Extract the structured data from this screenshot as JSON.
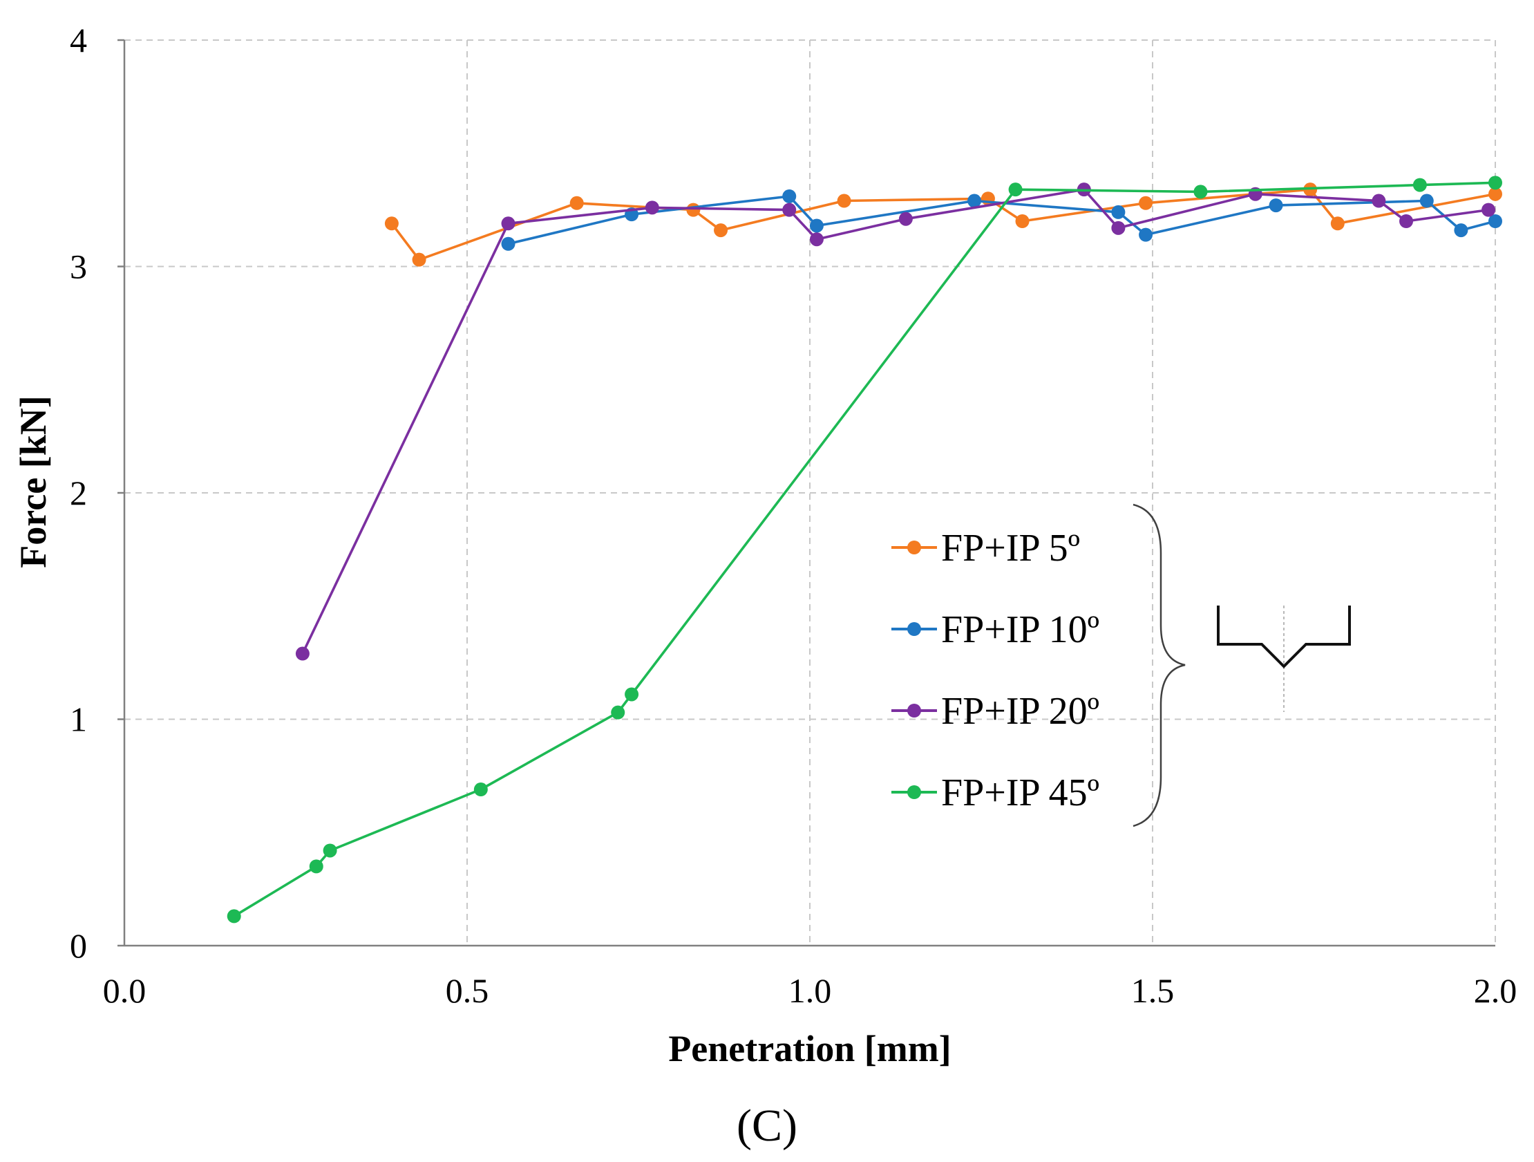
{
  "chart_data": {
    "type": "line",
    "title": "",
    "xlabel": "Penetration [mm]",
    "ylabel": "Force [kN]",
    "panel_label": "(C)",
    "xlim": [
      0.0,
      2.0
    ],
    "ylim": [
      0,
      4
    ],
    "xticks": [
      "0.0",
      "0.5",
      "1.0",
      "1.5",
      "2.0"
    ],
    "yticks": [
      "0",
      "1",
      "2",
      "3",
      "4"
    ],
    "grid": true,
    "legend_position": "center-right",
    "series": [
      {
        "name": "FP+IP 5º",
        "color": "#f47b20",
        "x": [
          0.39,
          0.43,
          0.66,
          0.83,
          0.87,
          1.05,
          1.26,
          1.31,
          1.49,
          1.73,
          1.77,
          2.0
        ],
        "y": [
          3.19,
          3.03,
          3.28,
          3.25,
          3.16,
          3.29,
          3.3,
          3.2,
          3.28,
          3.34,
          3.19,
          3.32
        ]
      },
      {
        "name": "FP+IP 10º",
        "color": "#1f77c4",
        "x": [
          0.56,
          0.74,
          0.97,
          1.01,
          1.24,
          1.45,
          1.49,
          1.68,
          1.9,
          1.95,
          2.0
        ],
        "y": [
          3.1,
          3.23,
          3.31,
          3.18,
          3.29,
          3.24,
          3.14,
          3.27,
          3.29,
          3.16,
          3.2
        ]
      },
      {
        "name": "FP+IP 20º",
        "color": "#7b2fa0",
        "x": [
          0.26,
          0.56,
          0.77,
          0.97,
          1.01,
          1.14,
          1.4,
          1.45,
          1.65,
          1.83,
          1.87,
          1.99
        ],
        "y": [
          1.29,
          3.19,
          3.26,
          3.25,
          3.12,
          3.21,
          3.34,
          3.17,
          3.32,
          3.29,
          3.2,
          3.25
        ]
      },
      {
        "name": "FP+IP 45º",
        "color": "#1db954",
        "x": [
          0.16,
          0.28,
          0.3,
          0.52,
          0.72,
          0.74,
          1.3,
          1.57,
          1.89,
          2.0
        ],
        "y": [
          0.13,
          0.35,
          0.42,
          0.69,
          1.03,
          1.11,
          3.34,
          3.33,
          3.36,
          3.37
        ]
      }
    ]
  }
}
